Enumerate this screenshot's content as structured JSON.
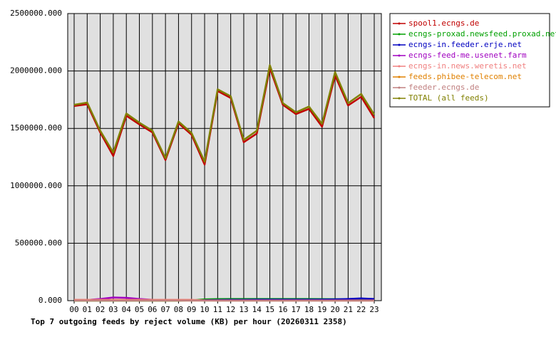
{
  "chart_data": {
    "type": "line",
    "title": "Top 7 outgoing feeds by reject volume (KB) per hour (20260311 2358)",
    "categories": [
      "00",
      "01",
      "02",
      "03",
      "04",
      "05",
      "06",
      "07",
      "08",
      "09",
      "10",
      "11",
      "12",
      "13",
      "14",
      "15",
      "16",
      "17",
      "18",
      "19",
      "20",
      "21",
      "22",
      "23"
    ],
    "ylim": [
      0,
      2500000
    ],
    "yticks": [
      {
        "value": 0,
        "label": "0.000"
      },
      {
        "value": 500000,
        "label": "500000.000"
      },
      {
        "value": 1000000,
        "label": "1000000.000"
      },
      {
        "value": 1500000,
        "label": "1500000.000"
      },
      {
        "value": 2000000,
        "label": "2000000.000"
      },
      {
        "value": 2500000,
        "label": "2500000.000"
      }
    ],
    "grid": true,
    "background": "#e0e0e0",
    "series": [
      {
        "name": "spool1.ecngs.de",
        "color": "#c00000",
        "values": [
          1695000,
          1710000,
          1465000,
          1260000,
          1610000,
          1535000,
          1465000,
          1225000,
          1545000,
          1445000,
          1185000,
          1825000,
          1765000,
          1380000,
          1455000,
          2025000,
          1705000,
          1625000,
          1670000,
          1515000,
          1960000,
          1700000,
          1775000,
          1590000
        ]
      },
      {
        "name": "ecngs-proxad.newsfeed.proxad.net",
        "color": "#00a000",
        "values": [
          0,
          0,
          0,
          0,
          0,
          0,
          0,
          0,
          0,
          2000,
          12000,
          14000,
          15000,
          15000,
          15000,
          15000,
          15000,
          15000,
          15000,
          14000,
          13000,
          12000,
          12000,
          12000
        ]
      },
      {
        "name": "ecngs-in.feeder.erje.net",
        "color": "#0000c0",
        "values": [
          2000,
          2000,
          3000,
          3000,
          3000,
          2000,
          2000,
          2000,
          2000,
          2000,
          5000,
          6000,
          8000,
          8000,
          9000,
          9000,
          9000,
          9000,
          9000,
          10000,
          12000,
          15000,
          20000,
          15000
        ]
      },
      {
        "name": "ecngs-feed-me.usenet.farm",
        "color": "#a000c0",
        "values": [
          5000,
          6000,
          15000,
          28000,
          25000,
          15000,
          8000,
          5000,
          5000,
          5000,
          3000,
          3000,
          3000,
          3000,
          3000,
          3000,
          3000,
          3000,
          3000,
          3000,
          3000,
          3000,
          3000,
          3000
        ]
      },
      {
        "name": "ecngs-in.news.weretis.net",
        "color": "#f08080",
        "values": [
          8000,
          8000,
          8000,
          8000,
          8000,
          8000,
          8000,
          8000,
          8000,
          8000,
          2000,
          1000,
          1000,
          1000,
          1000,
          1000,
          1000,
          1000,
          1000,
          1000,
          1000,
          1000,
          1000,
          1000
        ]
      },
      {
        "name": "feeds.phibee-telecom.net",
        "color": "#e08000",
        "values": [
          1000,
          1000,
          1000,
          1000,
          1000,
          1000,
          1000,
          1000,
          1000,
          1000,
          1000,
          1000,
          1000,
          1000,
          1000,
          1000,
          1000,
          1000,
          1000,
          1000,
          1000,
          1000,
          1000,
          1000
        ]
      },
      {
        "name": "feeder.ecngs.de",
        "color": "#c08080",
        "values": [
          500,
          500,
          500,
          500,
          500,
          500,
          500,
          500,
          500,
          500,
          500,
          500,
          500,
          500,
          500,
          500,
          500,
          500,
          500,
          500,
          500,
          500,
          500,
          500
        ]
      },
      {
        "name": "TOTAL (all feeds)",
        "color": "#808000",
        "values": [
          1705000,
          1725000,
          1480000,
          1290000,
          1630000,
          1550000,
          1480000,
          1240000,
          1560000,
          1460000,
          1210000,
          1840000,
          1780000,
          1400000,
          1480000,
          2050000,
          1720000,
          1640000,
          1690000,
          1540000,
          1990000,
          1720000,
          1800000,
          1620000
        ]
      }
    ]
  }
}
